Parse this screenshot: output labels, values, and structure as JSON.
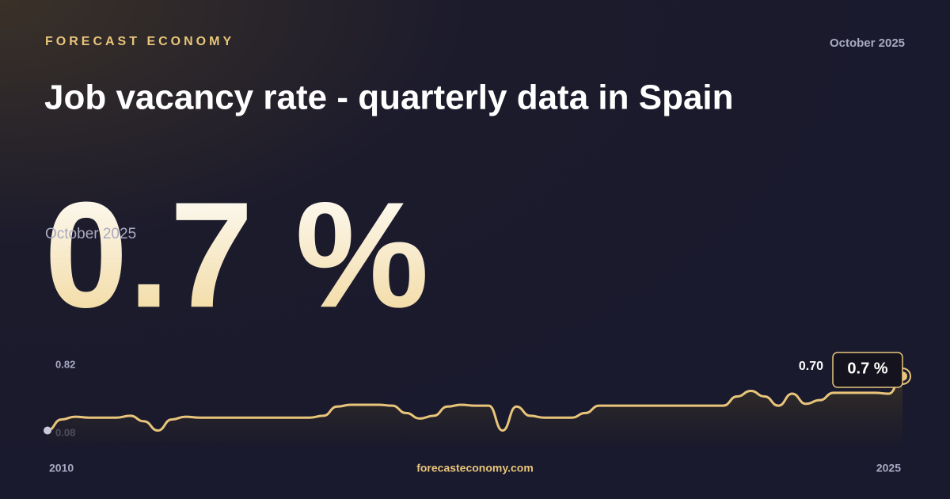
{
  "header": {
    "brand": "FORECAST ECONOMY",
    "date": "October 2025",
    "title": "Job vacancy rate - quarterly data in Spain"
  },
  "hero": {
    "date": "October 2025",
    "value_label": "0.7 %"
  },
  "chart_data": {
    "type": "line",
    "categories": [
      "2010",
      null,
      null,
      null,
      null,
      null,
      null,
      null,
      null,
      null,
      null,
      null,
      null,
      null,
      null,
      null,
      null,
      null,
      null,
      null,
      null,
      null,
      null,
      null,
      null,
      null,
      null,
      null,
      null,
      null,
      null,
      null,
      null,
      null,
      null,
      null,
      null,
      null,
      null,
      null,
      null,
      null,
      null,
      null,
      null,
      null,
      null,
      null,
      null,
      null,
      null,
      null,
      null,
      null,
      null,
      null,
      null,
      null,
      null,
      null,
      null,
      null,
      "2025"
    ],
    "series": [
      {
        "name": "Job vacancy rate",
        "color": "#e8c57a",
        "values": [
          0.11,
          0.23,
          0.26,
          0.25,
          0.25,
          0.25,
          0.27,
          0.21,
          0.11,
          0.23,
          0.26,
          0.25,
          0.25,
          0.25,
          0.25,
          0.25,
          0.25,
          0.25,
          0.25,
          0.25,
          0.27,
          0.37,
          0.39,
          0.39,
          0.39,
          0.38,
          0.3,
          0.24,
          0.27,
          0.37,
          0.39,
          0.38,
          0.38,
          0.11,
          0.37,
          0.27,
          0.25,
          0.25,
          0.25,
          0.3,
          0.38,
          0.38,
          0.38,
          0.38,
          0.38,
          0.38,
          0.38,
          0.38,
          0.38,
          0.38,
          0.48,
          0.54,
          0.48,
          0.38,
          0.51,
          0.4,
          0.44,
          0.52,
          0.52,
          0.52,
          0.52,
          0.51,
          0.7
        ],
        "value_labels": [
          null,
          null,
          null,
          null,
          null,
          null,
          null,
          null,
          null,
          null,
          null,
          null,
          null,
          null,
          null,
          null,
          null,
          null,
          null,
          null,
          null,
          null,
          null,
          null,
          null,
          null,
          null,
          null,
          null,
          null,
          null,
          null,
          null,
          null,
          null,
          null,
          null,
          null,
          null,
          null,
          null,
          null,
          null,
          null,
          null,
          null,
          null,
          null,
          null,
          null,
          null,
          null,
          null,
          null,
          null,
          null,
          null,
          null,
          null,
          null,
          null,
          null,
          "0.70"
        ]
      }
    ],
    "callout": "0.7 %",
    "ylim": [
      0.08,
      0.82
    ],
    "yticks": [
      0.82,
      0.08
    ]
  },
  "footer": {
    "site": "forecasteconomy.com"
  }
}
